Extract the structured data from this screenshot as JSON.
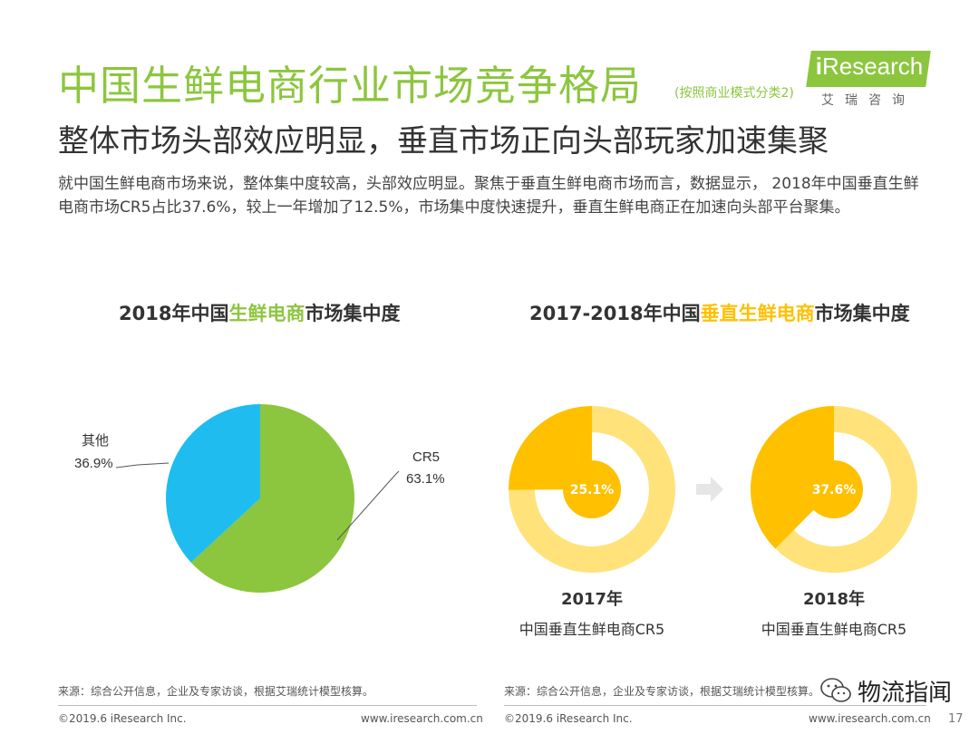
{
  "header": {
    "title": "中国生鲜电商行业市场竞争格局",
    "title_note": "(按照商业模式分类2)",
    "subtitle": "整体市场头部效应明显，垂直市场正向头部玩家加速集聚",
    "description": "就中国生鲜电商市场来说，整体集中度较高，头部效应明显。聚焦于垂直生鲜电商市场而言，数据显示， 2018年中国垂直生鲜电商市场CR5占比37.6%，较上一年增加了12.5%，市场集中度快速提升，垂直生鲜电商正在加速向头部平台聚集。"
  },
  "logo": {
    "brand_i": "i",
    "brand_rest": "Research",
    "sub": "艾瑞咨询"
  },
  "colors": {
    "green": "#8cc63e",
    "blue": "#1fbcf0",
    "yellow_dark": "#ffc000",
    "yellow_light": "#ffe27a",
    "arrow": "#e6e6e6"
  },
  "chart_titles": {
    "left": {
      "pre": "2018年中国",
      "hl": "生鲜电商",
      "post": "市场集中度"
    },
    "right": {
      "pre": "2017-2018年中国",
      "hl": "垂直生鲜电商",
      "post": "市场集中度"
    }
  },
  "chart_data": [
    {
      "type": "pie",
      "title": "2018年中国生鲜电商市场集中度",
      "slices": [
        {
          "label": "CR5",
          "value": 63.1,
          "value_text": "63.1%"
        },
        {
          "label": "其他",
          "value": 36.9,
          "value_text": "36.9%"
        }
      ]
    },
    {
      "type": "pie",
      "title": "2017-2018年中国垂直生鲜电商市场集中度",
      "subtype": "donut",
      "items": [
        {
          "year": "2017年",
          "label": "中国垂直生鲜电商CR5",
          "value": 25.1,
          "value_text": "25.1%"
        },
        {
          "year": "2018年",
          "label": "中国垂直生鲜电商CR5",
          "value": 37.6,
          "value_text": "37.6%"
        }
      ]
    }
  ],
  "footer": {
    "source_left": "来源：综合公开信息，企业及专家访谈，根据艾瑞统计模型核算。",
    "source_right": "来源：综合公开信息，企业及专家访谈，根据艾瑞统计模型核算。",
    "copyright_left": "©2019.6 iResearch Inc.",
    "url_left": "www.iresearch.com.cn",
    "copyright_right": "©2019.6 iResearch Inc.",
    "url_right": "www.iresearch.com.cn",
    "page": "17",
    "wechat_name": "物流指闻"
  }
}
